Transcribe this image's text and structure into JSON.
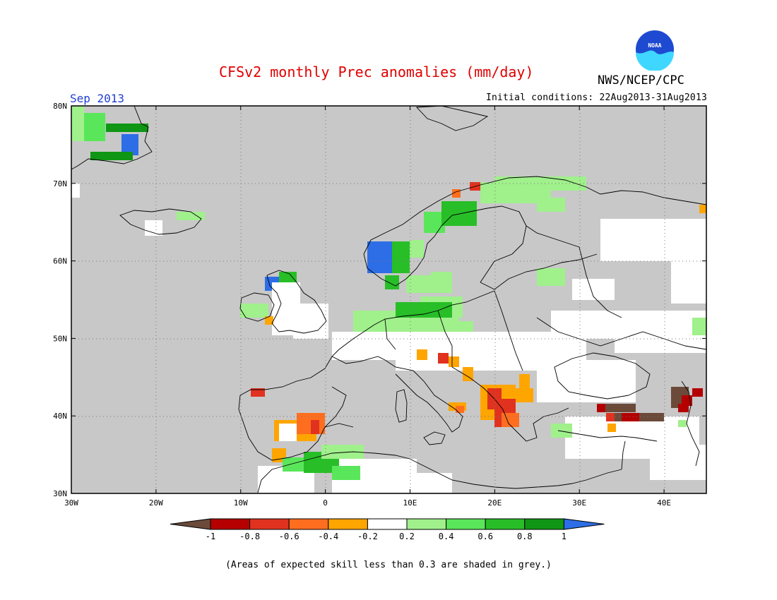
{
  "header": {
    "title": "CFSv2 monthly Prec anomalies (mm/day)",
    "org": "NWS/NCEP/CPC",
    "logo_text": "NOAA",
    "month": "Sep 2013",
    "initial_conditions": "Initial conditions: 22Aug2013-31Aug2013"
  },
  "map": {
    "lon_labels": [
      "30W",
      "20W",
      "10W",
      "0",
      "10E",
      "20E",
      "30E",
      "40E"
    ],
    "lat_labels": [
      "80N",
      "70N",
      "60N",
      "50N",
      "40N",
      "30N"
    ],
    "lon_range": [
      -30,
      45
    ],
    "lat_range": [
      30,
      80
    ],
    "grey_color": "#c8c8c8",
    "skill_mask_note": "grey = low skill"
  },
  "legend": {
    "tick_labels": [
      "-1",
      "-0.8",
      "-0.6",
      "-0.4",
      "-0.2",
      "0.2",
      "0.4",
      "0.6",
      "0.8",
      "1"
    ],
    "colors": [
      "#6b4a3a",
      "#b40000",
      "#e0321e",
      "#ff6e1e",
      "#ffa500",
      "#ffffff",
      "#a0f08c",
      "#5ae65a",
      "#28be28",
      "#0f9614",
      "#2d6ee6"
    ]
  },
  "footnote": "(Areas of expected skill less than 0.3 are shaded in grey.)"
}
